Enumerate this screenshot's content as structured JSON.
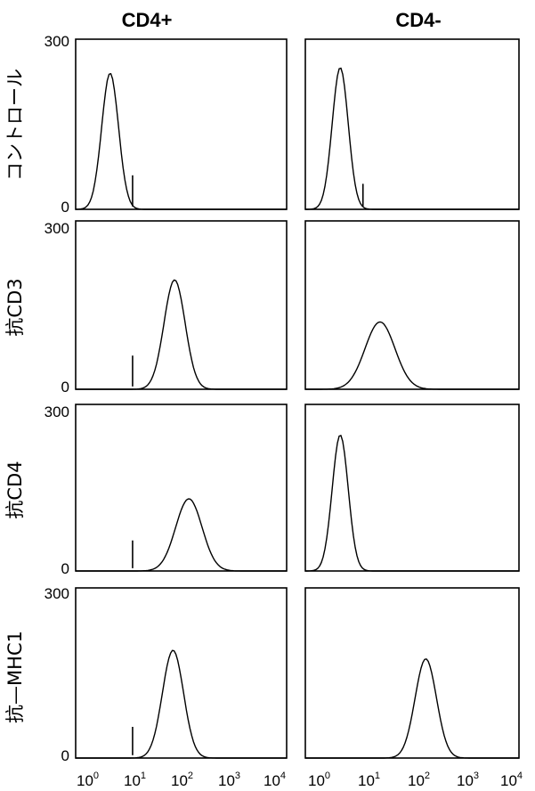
{
  "chart_data": {
    "type": "histogram-grid",
    "columns": [
      "CD4+",
      "CD4-"
    ],
    "rows": [
      "コントロール",
      "抗CD3",
      "抗CD4",
      "抗—MHC1"
    ],
    "y_ticks": [
      "300",
      "0"
    ],
    "ylim": [
      0,
      300
    ],
    "x_scale": "log",
    "xlim": [
      1,
      10000
    ],
    "x_ticks": [
      {
        "base": "10",
        "exp": "0"
      },
      {
        "base": "10",
        "exp": "1"
      },
      {
        "base": "10",
        "exp": "2"
      },
      {
        "base": "10",
        "exp": "3"
      },
      {
        "base": "10",
        "exp": "4"
      }
    ],
    "panels": [
      {
        "row": 0,
        "col": 0,
        "peak_x": 4.5,
        "peak_y": 240,
        "width": 0.16,
        "gate_x": 12,
        "gate_y": 60
      },
      {
        "row": 0,
        "col": 1,
        "peak_x": 4.5,
        "peak_y": 250,
        "width": 0.15,
        "gate_x": 12,
        "gate_y": 45
      },
      {
        "row": 1,
        "col": 0,
        "peak_x": 75,
        "peak_y": 195,
        "width": 0.2,
        "gate_x": 12,
        "gate_y": 60
      },
      {
        "row": 1,
        "col": 1,
        "peak_x": 25,
        "peak_y": 120,
        "width": 0.28,
        "gate_x": null,
        "gate_y": 0
      },
      {
        "row": 2,
        "col": 0,
        "peak_x": 140,
        "peak_y": 130,
        "width": 0.25,
        "gate_x": 12,
        "gate_y": 55
      },
      {
        "row": 2,
        "col": 1,
        "peak_x": 4.5,
        "peak_y": 245,
        "width": 0.15,
        "gate_x": null,
        "gate_y": 0
      },
      {
        "row": 3,
        "col": 0,
        "peak_x": 70,
        "peak_y": 190,
        "width": 0.2,
        "gate_x": 12,
        "gate_y": 55
      },
      {
        "row": 3,
        "col": 1,
        "peak_x": 180,
        "peak_y": 175,
        "width": 0.2,
        "gate_x": null,
        "gate_y": 0
      }
    ]
  }
}
